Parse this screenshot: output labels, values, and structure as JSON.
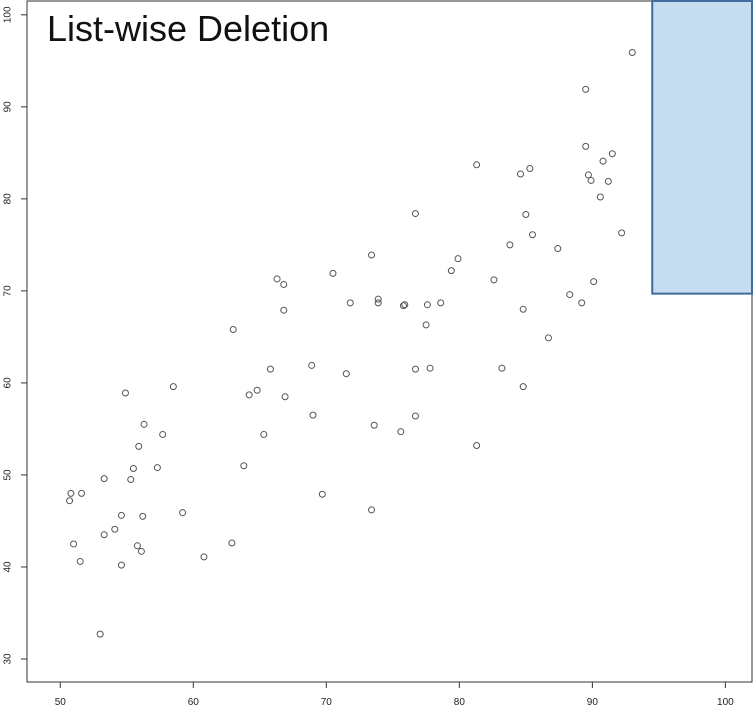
{
  "chart_data": {
    "type": "scatter",
    "title": "List-wise Deletion",
    "xlabel": "",
    "ylabel": "",
    "xlim": [
      47.5,
      102
    ],
    "ylim": [
      27.5,
      101.5
    ],
    "xticks": [
      50,
      60,
      70,
      80,
      90,
      100
    ],
    "yticks": [
      30,
      40,
      50,
      60,
      70,
      80,
      90,
      100
    ],
    "xtick_labels": [
      "50",
      "60",
      "70",
      "80",
      "90",
      "100"
    ],
    "ytick_labels": [
      "30",
      "40",
      "50",
      "60",
      "70",
      "80",
      "90",
      "100"
    ],
    "grid": false,
    "legend": "none",
    "marker_color": "#555555",
    "highlight_region": {
      "x": [
        94.5,
        103.0
      ],
      "y": [
        69.7,
        102.0
      ],
      "fill": "#c6dcf0",
      "stroke": "#3f6e9e"
    },
    "points": [
      [
        50.8,
        48.0
      ],
      [
        50.7,
        47.2
      ],
      [
        51.6,
        48.0
      ],
      [
        51.0,
        42.5
      ],
      [
        51.5,
        40.6
      ],
      [
        53.0,
        32.7
      ],
      [
        53.3,
        49.6
      ],
      [
        53.3,
        43.5
      ],
      [
        54.1,
        44.1
      ],
      [
        54.6,
        45.6
      ],
      [
        54.6,
        40.2
      ],
      [
        54.9,
        58.9
      ],
      [
        55.3,
        49.5
      ],
      [
        55.5,
        50.7
      ],
      [
        55.8,
        42.3
      ],
      [
        56.1,
        41.7
      ],
      [
        55.9,
        53.1
      ],
      [
        56.2,
        45.5
      ],
      [
        56.3,
        55.5
      ],
      [
        57.3,
        50.8
      ],
      [
        57.7,
        54.4
      ],
      [
        58.5,
        59.6
      ],
      [
        59.2,
        45.9
      ],
      [
        60.8,
        41.1
      ],
      [
        62.9,
        42.6
      ],
      [
        63.0,
        65.8
      ],
      [
        63.8,
        51.0
      ],
      [
        64.2,
        58.7
      ],
      [
        64.8,
        59.2
      ],
      [
        65.3,
        54.4
      ],
      [
        65.8,
        61.5
      ],
      [
        66.3,
        71.3
      ],
      [
        66.8,
        70.7
      ],
      [
        66.8,
        67.9
      ],
      [
        66.9,
        58.5
      ],
      [
        68.9,
        61.9
      ],
      [
        69.0,
        56.5
      ],
      [
        69.7,
        47.9
      ],
      [
        70.5,
        71.9
      ],
      [
        71.5,
        61.0
      ],
      [
        71.8,
        68.7
      ],
      [
        73.4,
        46.2
      ],
      [
        73.4,
        73.9
      ],
      [
        73.6,
        55.4
      ],
      [
        73.9,
        69.1
      ],
      [
        73.9,
        68.7
      ],
      [
        75.6,
        54.7
      ],
      [
        75.8,
        68.4
      ],
      [
        75.9,
        68.5
      ],
      [
        76.7,
        78.4
      ],
      [
        76.7,
        61.5
      ],
      [
        76.7,
        56.4
      ],
      [
        77.5,
        66.3
      ],
      [
        77.6,
        68.5
      ],
      [
        77.8,
        61.6
      ],
      [
        78.6,
        68.7
      ],
      [
        79.4,
        72.2
      ],
      [
        79.9,
        73.5
      ],
      [
        81.3,
        83.7
      ],
      [
        81.3,
        53.2
      ],
      [
        82.6,
        71.2
      ],
      [
        83.2,
        61.6
      ],
      [
        83.8,
        75.0
      ],
      [
        84.6,
        82.7
      ],
      [
        84.8,
        68.0
      ],
      [
        84.8,
        59.6
      ],
      [
        85.0,
        78.3
      ],
      [
        85.3,
        83.3
      ],
      [
        85.5,
        76.1
      ],
      [
        86.7,
        64.9
      ],
      [
        87.4,
        74.6
      ],
      [
        88.3,
        69.6
      ],
      [
        89.2,
        68.7
      ],
      [
        89.5,
        91.9
      ],
      [
        89.5,
        85.7
      ],
      [
        89.7,
        82.6
      ],
      [
        89.9,
        82.0
      ],
      [
        90.1,
        71.0
      ],
      [
        90.6,
        80.2
      ],
      [
        90.8,
        84.1
      ],
      [
        91.2,
        81.9
      ],
      [
        91.5,
        84.9
      ],
      [
        92.2,
        76.3
      ],
      [
        93.0,
        95.9
      ]
    ]
  }
}
